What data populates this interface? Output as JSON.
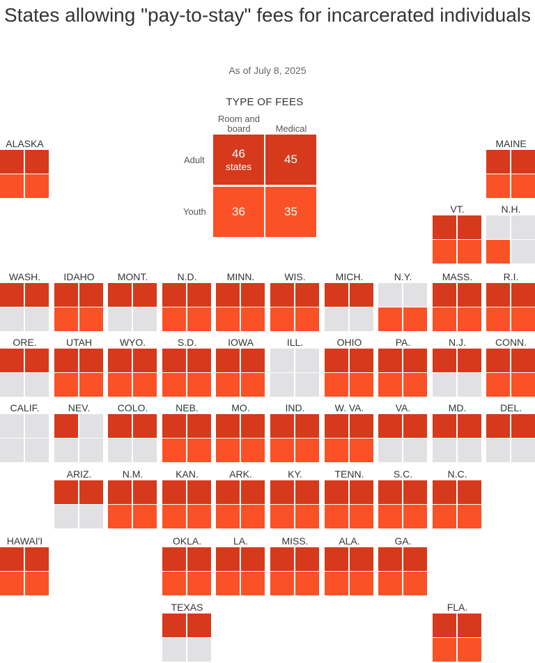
{
  "title": "States allowing \"pay-to-stay\" fees for incarcerated individuals",
  "subtitle": "As of July 8, 2025",
  "colors": {
    "adult_fee": "#d6391b",
    "youth_fee": "#fb5126",
    "no_fee": "#e1e1e3"
  },
  "legend": {
    "title": "TYPE OF FEES",
    "columns": [
      "Room and board",
      "Medical"
    ],
    "rows": [
      "Adult",
      "Youth"
    ],
    "cells": [
      {
        "value": "46",
        "unit": "states"
      },
      {
        "value": "45",
        "unit": ""
      },
      {
        "value": "36",
        "unit": ""
      },
      {
        "value": "35",
        "unit": ""
      }
    ]
  },
  "chart_data": {
    "type": "tile-grid map",
    "cell_order": [
      "Adult room and board",
      "Adult medical",
      "Youth room and board",
      "Youth medical"
    ],
    "states": [
      {
        "label": "ALASKA",
        "fees": [
          1,
          1,
          1,
          1
        ]
      },
      {
        "label": "MAINE",
        "fees": [
          1,
          1,
          1,
          1
        ]
      },
      {
        "label": "VT.",
        "fees": [
          1,
          1,
          1,
          1
        ]
      },
      {
        "label": "N.H.",
        "fees": [
          0,
          0,
          1,
          0
        ]
      },
      {
        "label": "WASH.",
        "fees": [
          1,
          1,
          0,
          0
        ]
      },
      {
        "label": "IDAHO",
        "fees": [
          1,
          1,
          1,
          1
        ]
      },
      {
        "label": "MONT.",
        "fees": [
          1,
          1,
          0,
          0
        ]
      },
      {
        "label": "N.D.",
        "fees": [
          1,
          1,
          1,
          1
        ]
      },
      {
        "label": "MINN.",
        "fees": [
          1,
          1,
          1,
          1
        ]
      },
      {
        "label": "WIS.",
        "fees": [
          1,
          1,
          1,
          1
        ]
      },
      {
        "label": "MICH.",
        "fees": [
          1,
          1,
          0,
          0
        ]
      },
      {
        "label": "N.Y.",
        "fees": [
          0,
          0,
          1,
          1
        ]
      },
      {
        "label": "MASS.",
        "fees": [
          1,
          1,
          1,
          1
        ]
      },
      {
        "label": "R.I.",
        "fees": [
          1,
          1,
          1,
          1
        ]
      },
      {
        "label": "ORE.",
        "fees": [
          1,
          1,
          0,
          0
        ]
      },
      {
        "label": "UTAH",
        "fees": [
          1,
          1,
          1,
          1
        ]
      },
      {
        "label": "WYO.",
        "fees": [
          1,
          1,
          1,
          1
        ]
      },
      {
        "label": "S.D.",
        "fees": [
          1,
          1,
          1,
          1
        ]
      },
      {
        "label": "IOWA",
        "fees": [
          1,
          1,
          1,
          1
        ]
      },
      {
        "label": "ILL.",
        "fees": [
          0,
          0,
          0,
          0
        ]
      },
      {
        "label": "OHIO",
        "fees": [
          1,
          1,
          1,
          1
        ]
      },
      {
        "label": "PA.",
        "fees": [
          1,
          1,
          1,
          1
        ]
      },
      {
        "label": "N.J.",
        "fees": [
          1,
          1,
          0,
          0
        ]
      },
      {
        "label": "CONN.",
        "fees": [
          1,
          1,
          1,
          1
        ]
      },
      {
        "label": "CALIF.",
        "fees": [
          0,
          0,
          0,
          0
        ]
      },
      {
        "label": "NEV.",
        "fees": [
          1,
          0,
          0,
          0
        ]
      },
      {
        "label": "COLO.",
        "fees": [
          1,
          1,
          0,
          0
        ]
      },
      {
        "label": "NEB.",
        "fees": [
          1,
          1,
          1,
          1
        ]
      },
      {
        "label": "MO.",
        "fees": [
          1,
          1,
          1,
          1
        ]
      },
      {
        "label": "IND.",
        "fees": [
          1,
          1,
          1,
          1
        ]
      },
      {
        "label": "W. VA.",
        "fees": [
          1,
          1,
          1,
          1
        ]
      },
      {
        "label": "VA.",
        "fees": [
          1,
          1,
          0,
          0
        ]
      },
      {
        "label": "MD.",
        "fees": [
          1,
          1,
          0,
          0
        ]
      },
      {
        "label": "DEL.",
        "fees": [
          1,
          1,
          0,
          0
        ]
      },
      {
        "label": "ARIZ.",
        "fees": [
          1,
          1,
          0,
          0
        ]
      },
      {
        "label": "N.M.",
        "fees": [
          1,
          1,
          1,
          1
        ]
      },
      {
        "label": "KAN.",
        "fees": [
          1,
          1,
          1,
          1
        ]
      },
      {
        "label": "ARK.",
        "fees": [
          1,
          1,
          1,
          1
        ]
      },
      {
        "label": "KY.",
        "fees": [
          1,
          1,
          1,
          1
        ]
      },
      {
        "label": "TENN.",
        "fees": [
          1,
          1,
          1,
          1
        ]
      },
      {
        "label": "S.C.",
        "fees": [
          1,
          1,
          1,
          1
        ]
      },
      {
        "label": "N.C.",
        "fees": [
          1,
          1,
          1,
          1
        ]
      },
      {
        "label": "HAWAI'I",
        "fees": [
          1,
          1,
          1,
          1
        ]
      },
      {
        "label": "OKLA.",
        "fees": [
          1,
          1,
          1,
          1
        ]
      },
      {
        "label": "LA.",
        "fees": [
          1,
          1,
          1,
          1
        ]
      },
      {
        "label": "MISS.",
        "fees": [
          1,
          1,
          1,
          1
        ]
      },
      {
        "label": "ALA.",
        "fees": [
          1,
          1,
          1,
          1
        ]
      },
      {
        "label": "GA.",
        "fees": [
          1,
          1,
          1,
          1
        ]
      },
      {
        "label": "TEXAS",
        "fees": [
          1,
          1,
          0,
          0
        ]
      },
      {
        "label": "FLA.",
        "fees": [
          1,
          1,
          1,
          1
        ]
      }
    ]
  }
}
